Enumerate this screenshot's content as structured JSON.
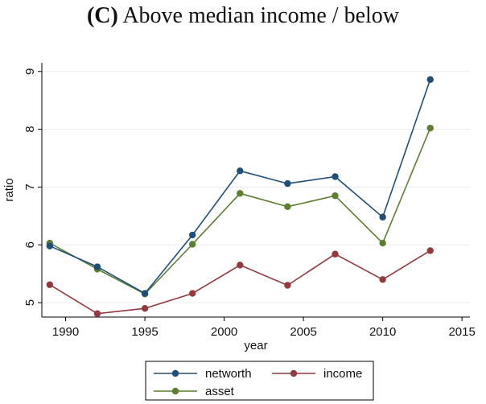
{
  "title": {
    "panel": "(C)",
    "text": "Above median income / below"
  },
  "chart_data": {
    "type": "line",
    "xlabel": "year",
    "ylabel": "ratio",
    "xlim": [
      1988.5,
      2015.5
    ],
    "ylim": [
      4.75,
      9.15
    ],
    "x_ticks": [
      1990,
      1995,
      2000,
      2005,
      2010,
      2015
    ],
    "y_ticks": [
      5,
      6,
      7,
      8,
      9
    ],
    "grid": true,
    "legend_position": "bottom",
    "x": [
      1989,
      1992,
      1995,
      1998,
      2001,
      2004,
      2007,
      2010,
      2013
    ],
    "series": [
      {
        "name": "networth",
        "color": "#1f4e79",
        "values": [
          5.98,
          5.62,
          5.16,
          6.17,
          7.28,
          7.06,
          7.18,
          6.48,
          8.86
        ]
      },
      {
        "name": "income",
        "color": "#943a3e",
        "values": [
          5.31,
          4.81,
          4.9,
          5.16,
          5.65,
          5.3,
          5.84,
          5.4,
          5.9
        ]
      },
      {
        "name": "asset",
        "color": "#5b7f2f",
        "values": [
          6.03,
          5.58,
          5.15,
          6.01,
          6.89,
          6.66,
          6.85,
          6.03,
          8.02
        ]
      }
    ]
  }
}
